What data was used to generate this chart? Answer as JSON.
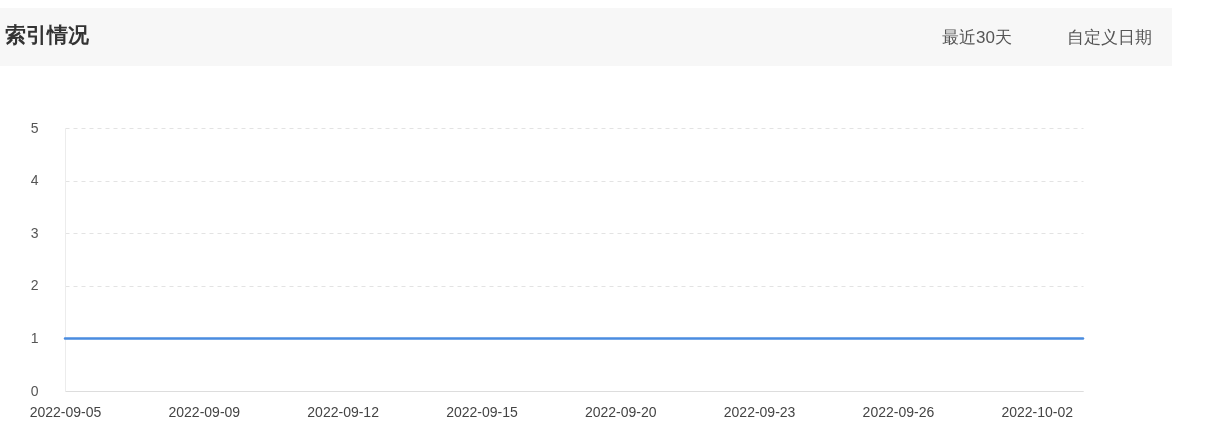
{
  "chart_data": {
    "type": "line",
    "title": "索引情况",
    "annotations": [
      "最近30天",
      "自定义日期"
    ],
    "categories": [
      "2022-09-05",
      null,
      null,
      "2022-09-09",
      null,
      null,
      "2022-09-12",
      null,
      null,
      "2022-09-15",
      null,
      null,
      "2022-09-20",
      null,
      null,
      "2022-09-23",
      null,
      null,
      "2022-09-26",
      null,
      null,
      "2022-10-02",
      null
    ],
    "series": [
      {
        "color": "#4a8ce0",
        "values": [
          1,
          1,
          1,
          1,
          1,
          1,
          1,
          1,
          1,
          1,
          1,
          1,
          1,
          1,
          1,
          1,
          1,
          1,
          1,
          1,
          1,
          1,
          1
        ]
      }
    ],
    "ylim": [
      0,
      5
    ],
    "yticks": [
      0,
      1,
      2,
      3,
      4,
      5
    ],
    "grid": "y",
    "marker": "none",
    "line_style": "solid"
  }
}
